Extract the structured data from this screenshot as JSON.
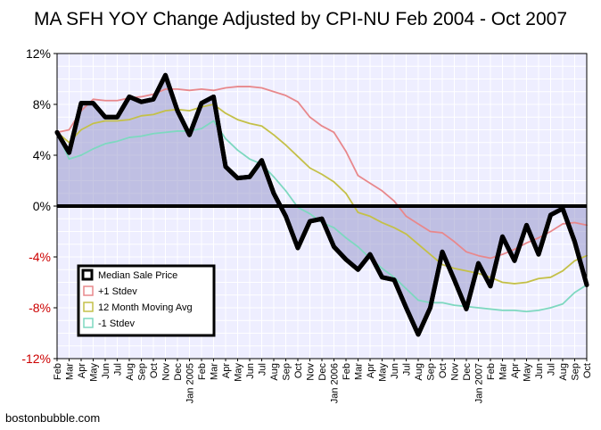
{
  "chart_data": {
    "type": "line",
    "title": "MA SFH YOY Change Adjusted by CPI-NU Feb 2004 - Oct 2007",
    "footer": "bostonbubble.com",
    "y_ticks": [
      {
        "value": 12,
        "label": "12%",
        "color": "#000000"
      },
      {
        "value": 8,
        "label": "8%",
        "color": "#000000"
      },
      {
        "value": 4,
        "label": "4%",
        "color": "#000000"
      },
      {
        "value": 0,
        "label": "0%",
        "color": "#000000"
      },
      {
        "value": -4,
        "label": "-4%",
        "color": "#cc0000"
      },
      {
        "value": -8,
        "label": "-8%",
        "color": "#cc0000"
      },
      {
        "value": -12,
        "label": "-12%",
        "color": "#cc0000"
      }
    ],
    "ylim": [
      -12,
      12
    ],
    "x_labels": [
      "Feb",
      "Mar",
      "Apr",
      "May",
      "Jun",
      "Jul",
      "Aug",
      "Sep",
      "Oct",
      "Nov",
      "Dec",
      "Jan 2005",
      "Feb",
      "Mar",
      "Apr",
      "May",
      "Jun",
      "Jul",
      "Aug",
      "Sep",
      "Oct",
      "Nov",
      "Dec",
      "Jan 2006",
      "Feb",
      "Mar",
      "Apr",
      "May",
      "Jun",
      "Jul",
      "Aug",
      "Sep",
      "Oct",
      "Nov",
      "Dec",
      "Jan 2007",
      "Feb",
      "Mar",
      "Apr",
      "May",
      "Jun",
      "Jul",
      "Aug",
      "Sep",
      "Oct"
    ],
    "grid": true,
    "legend_position": "bottom-left",
    "series": [
      {
        "name": "Median Sale Price",
        "color": "#000000",
        "values": [
          5.8,
          4.2,
          8.1,
          8.1,
          7.0,
          7.0,
          8.6,
          8.2,
          8.4,
          10.3,
          7.5,
          5.6,
          8.1,
          8.6,
          3.1,
          2.2,
          2.3,
          3.6,
          1.0,
          -0.8,
          -3.3,
          -1.2,
          -1.0,
          -3.2,
          -4.2,
          -5.0,
          -3.8,
          -5.6,
          -5.8,
          -8.0,
          -10.1,
          -8.0,
          -3.6,
          -5.8,
          -8.1,
          -4.5,
          -6.3,
          -2.4,
          -4.3,
          -1.5,
          -3.8,
          -0.7,
          -0.2,
          -2.8,
          -6.2
        ]
      },
      {
        "name": "+1 Stdev",
        "color": "#e8888c",
        "values": [
          5.8,
          6.0,
          7.5,
          8.4,
          8.3,
          8.3,
          8.5,
          8.6,
          8.8,
          9.2,
          9.2,
          9.1,
          9.2,
          9.1,
          9.3,
          9.4,
          9.4,
          9.3,
          9.0,
          8.7,
          8.2,
          7.0,
          6.3,
          5.8,
          4.3,
          2.4,
          1.8,
          1.2,
          0.4,
          -0.8,
          -1.4,
          -2.0,
          -2.1,
          -2.8,
          -3.6,
          -3.9,
          -4.1,
          -3.8,
          -3.4,
          -2.9,
          -2.5,
          -2.0,
          -1.4,
          -1.3,
          -1.5
        ]
      },
      {
        "name": "12 Month Moving Avg",
        "color": "#c4c048",
        "values": [
          5.8,
          5.0,
          6.0,
          6.5,
          6.7,
          6.7,
          6.8,
          7.1,
          7.2,
          7.5,
          7.6,
          7.5,
          7.8,
          8.0,
          7.3,
          6.8,
          6.5,
          6.3,
          5.6,
          4.8,
          3.9,
          3.0,
          2.5,
          1.9,
          1.0,
          -0.5,
          -0.8,
          -1.3,
          -1.7,
          -2.2,
          -3.0,
          -3.8,
          -4.6,
          -4.9,
          -5.1,
          -5.3,
          -5.6,
          -6.0,
          -6.1,
          -6.0,
          -5.7,
          -5.6,
          -5.1,
          -4.3,
          -3.9
        ]
      },
      {
        "name": "-1 Stdev",
        "color": "#7ed8c0",
        "values": [
          5.8,
          3.7,
          4.0,
          4.5,
          4.9,
          5.1,
          5.4,
          5.5,
          5.7,
          5.8,
          5.9,
          5.9,
          6.1,
          6.7,
          5.3,
          4.4,
          3.7,
          3.3,
          2.3,
          1.2,
          -0.1,
          -0.6,
          -1.3,
          -1.7,
          -2.5,
          -3.2,
          -4.1,
          -4.9,
          -5.6,
          -6.5,
          -7.4,
          -7.6,
          -7.6,
          -7.8,
          -7.9,
          -8.0,
          -8.1,
          -8.2,
          -8.2,
          -8.3,
          -8.2,
          -8.0,
          -7.7,
          -6.8,
          -6.2
        ]
      }
    ]
  }
}
